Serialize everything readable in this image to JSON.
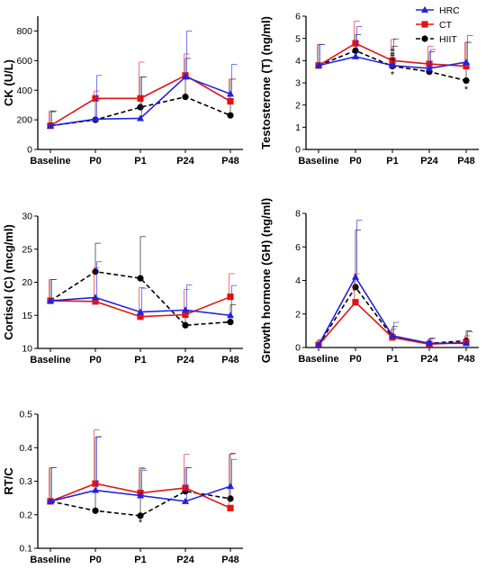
{
  "legend": [
    {
      "name": "HRC",
      "marker": "triangle",
      "color": "#2222e0",
      "dash": false
    },
    {
      "name": "CT",
      "marker": "square",
      "color": "#e01414",
      "dash": false
    },
    {
      "name": "HIIT",
      "marker": "circle",
      "color": "#000000",
      "dash": true
    }
  ],
  "chart_data": [
    {
      "type": "line",
      "ylabel": "CK (U/L)",
      "categories": [
        "Baseline",
        "P0",
        "P1",
        "P24",
        "P48"
      ],
      "ylim": [
        0,
        900
      ],
      "yticks": [
        0,
        200,
        400,
        600,
        800
      ],
      "series": [
        {
          "name": "HRC",
          "values": [
            160,
            205,
            210,
            490,
            375
          ],
          "errors": [
            100,
            295,
            280,
            310,
            200
          ]
        },
        {
          "name": "CT",
          "values": [
            160,
            345,
            345,
            500,
            325
          ],
          "errors": [
            100,
            50,
            245,
            145,
            150
          ]
        },
        {
          "name": "HIIT",
          "values": [
            160,
            200,
            285,
            355,
            230
          ],
          "errors": [
            95,
            140,
            205,
            260,
            245
          ]
        }
      ],
      "annotations": []
    },
    {
      "type": "line",
      "ylabel": "Testosterone (T) (ng/ml)",
      "categories": [
        "Baseline",
        "P0",
        "P1",
        "P24",
        "P48"
      ],
      "ylim": [
        0,
        6
      ],
      "yticks": [
        0,
        1,
        2,
        3,
        4,
        5,
        6
      ],
      "series": [
        {
          "name": "HRC",
          "values": [
            3.78,
            4.18,
            3.78,
            3.65,
            3.93
          ],
          "errors": [
            0.95,
            1.35,
            1.2,
            0.85,
            1.2
          ]
        },
        {
          "name": "CT",
          "values": [
            3.78,
            4.78,
            4.0,
            3.85,
            3.75
          ],
          "errors": [
            0.95,
            1.0,
            0.95,
            0.8,
            1.08
          ]
        },
        {
          "name": "HIIT",
          "values": [
            3.78,
            4.45,
            3.75,
            3.5,
            3.1
          ],
          "errors": [
            0.95,
            0.72,
            0.9,
            0.9,
            1.72
          ]
        }
      ],
      "annotations": [
        {
          "text": "‡",
          "category": "P1",
          "value": 4.42
        },
        {
          "text": "‡",
          "category": "P1",
          "value": 4.18
        },
        {
          "text": "*",
          "category": "P1",
          "value": 3.38
        },
        {
          "text": "*",
          "category": "P48",
          "value": 2.72
        }
      ]
    },
    {
      "type": "line",
      "ylabel": "Cortisol (C) (mcg/ml)",
      "categories": [
        "Baseline",
        "P0",
        "P1",
        "P24",
        "P48"
      ],
      "ylim": [
        10,
        30
      ],
      "yticks": [
        10,
        15,
        20,
        25,
        30
      ],
      "series": [
        {
          "name": "HRC",
          "values": [
            17.2,
            17.7,
            15.5,
            15.8,
            15.0
          ],
          "errors": [
            3.2,
            5.4,
            3.6,
            3.8,
            4.5
          ]
        },
        {
          "name": "CT",
          "values": [
            17.2,
            17.1,
            14.8,
            15.1,
            17.8
          ],
          "errors": [
            3.2,
            5.1,
            4.4,
            3.8,
            3.5
          ]
        },
        {
          "name": "HIIT",
          "values": [
            17.2,
            21.6,
            20.6,
            13.5,
            14.0
          ],
          "errors": [
            3.2,
            4.3,
            6.3,
            2.1,
            2.6
          ]
        }
      ],
      "annotations": []
    },
    {
      "type": "line",
      "ylabel": "Growth hormone (GH) (ng/ml)",
      "categories": [
        "Baseline",
        "P0",
        "P1",
        "P24",
        "P48"
      ],
      "ylim": [
        0,
        8
      ],
      "yticks": [
        0,
        2,
        4,
        6,
        8
      ],
      "series": [
        {
          "name": "HRC",
          "values": [
            0.15,
            4.2,
            0.7,
            0.25,
            0.25
          ],
          "errors": [
            0.3,
            3.4,
            0.8,
            0.3,
            0.7
          ]
        },
        {
          "name": "CT",
          "values": [
            0.15,
            2.7,
            0.6,
            0.2,
            0.3
          ],
          "errors": [
            0.3,
            1.7,
            0.5,
            0.3,
            0.4
          ]
        },
        {
          "name": "HIIT",
          "values": [
            0.15,
            3.6,
            0.65,
            0.25,
            0.4
          ],
          "errors": [
            0.3,
            3.4,
            0.6,
            0.3,
            0.6
          ]
        }
      ],
      "annotations": []
    },
    {
      "type": "line",
      "ylabel": "RT/C",
      "categories": [
        "Baseline",
        "P0",
        "P1",
        "P24",
        "P48"
      ],
      "ylim": [
        0.1,
        0.5
      ],
      "yticks": [
        0.1,
        0.2,
        0.3,
        0.4,
        0.5
      ],
      "series": [
        {
          "name": "HRC",
          "values": [
            0.24,
            0.273,
            0.257,
            0.24,
            0.285
          ],
          "errors": [
            0.1,
            0.16,
            0.075,
            0.1,
            0.08
          ]
        },
        {
          "name": "CT",
          "values": [
            0.24,
            0.293,
            0.265,
            0.28,
            0.22
          ],
          "errors": [
            0.1,
            0.16,
            0.075,
            0.1,
            0.16
          ]
        },
        {
          "name": "HIIT",
          "values": [
            0.24,
            0.212,
            0.197,
            0.27,
            0.248
          ],
          "errors": [
            0.1,
            0.22,
            0.14,
            0.07,
            0.135
          ]
        }
      ],
      "annotations": [
        {
          "text": "*",
          "category": "P1",
          "value": 0.178
        }
      ]
    }
  ]
}
